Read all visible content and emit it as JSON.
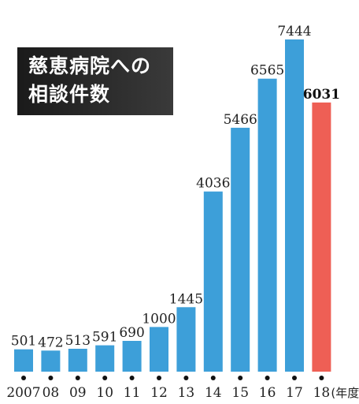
{
  "chart_data": {
    "type": "bar",
    "title_lines": [
      "慈恵病院への",
      "相談件数"
    ],
    "categories": [
      "2007",
      "08",
      "09",
      "10",
      "11",
      "12",
      "13",
      "14",
      "15",
      "16",
      "17",
      "18"
    ],
    "values": [
      501,
      472,
      513,
      591,
      690,
      1000,
      1445,
      4036,
      5466,
      6565,
      7444,
      6031
    ],
    "value_labels": [
      "501",
      "472",
      "513",
      "591",
      "690",
      "1000",
      "1445",
      "4036",
      "5466",
      "6565",
      "7444",
      "6031"
    ],
    "highlight_index": 11,
    "x_unit_label": "(年度)",
    "ylim": [
      0,
      7444
    ],
    "grid": false,
    "colors": {
      "bar": "#3d9fd9",
      "highlight_bar": "#ee5f55",
      "text": "#222222",
      "highlight_text": "#111111",
      "baseline": "#333333",
      "tick_dot": "#111111"
    }
  }
}
